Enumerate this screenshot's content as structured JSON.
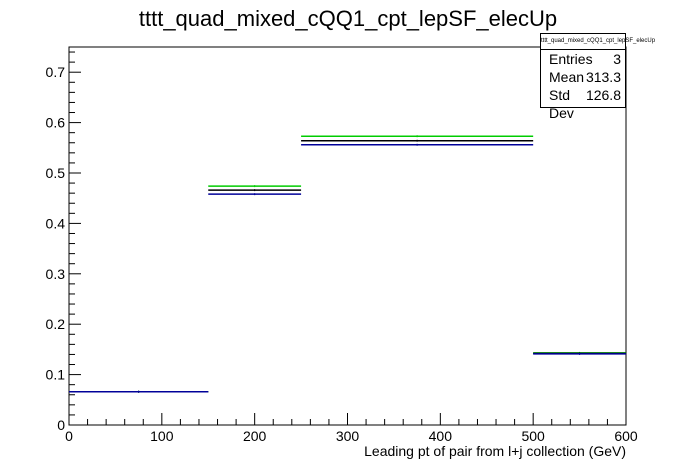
{
  "chart_data": {
    "type": "bar",
    "title": "tttt_quad_mixed_cQQ1_cpt_lepSF_elecUp",
    "xlabel": "Leading pt of pair from l+j collection (GeV)",
    "ylabel": "",
    "xlim": [
      0,
      600
    ],
    "ylim": [
      0,
      0.75
    ],
    "x_ticks": [
      "0",
      "100",
      "200",
      "300",
      "400",
      "500",
      "600"
    ],
    "y_ticks": [
      "0",
      "0.1",
      "0.2",
      "0.3",
      "0.4",
      "0.5",
      "0.6",
      "0.7"
    ],
    "bin_edges": [
      0,
      150,
      250,
      500,
      600
    ],
    "series": [
      {
        "color": "#00cc00",
        "values": [
          0.066,
          0.474,
          0.573,
          0.143
        ]
      },
      {
        "color": "#000000",
        "values": [
          0.066,
          0.466,
          0.564,
          0.142
        ]
      },
      {
        "color": "#000099",
        "values": [
          0.066,
          0.458,
          0.556,
          0.141
        ]
      }
    ],
    "grid": false,
    "legend": "none"
  },
  "stats": {
    "title": "tttt_quad_mixed_cQQ1_cpt_lepSF_elecUp",
    "rows": [
      {
        "label": "Entries",
        "value": "3"
      },
      {
        "label": "Mean",
        "value": "313.3"
      },
      {
        "label": "Std Dev",
        "value": "126.8"
      }
    ]
  }
}
